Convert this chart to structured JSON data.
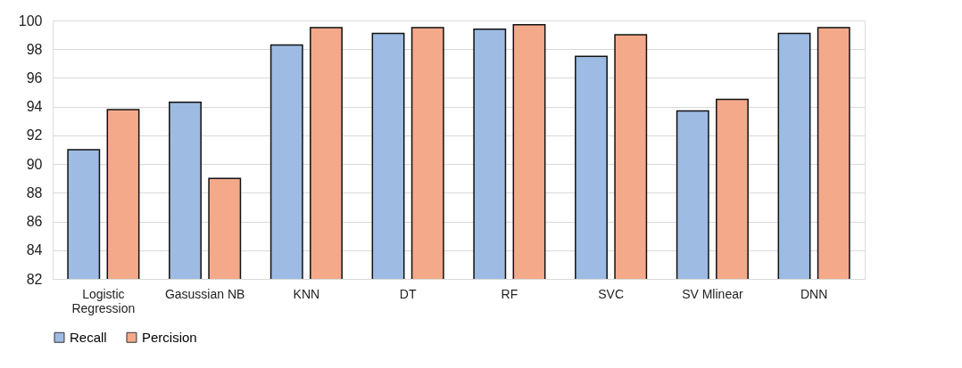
{
  "chart_data": {
    "type": "bar",
    "categories": [
      "Logistic Regression",
      "Gasussian NB",
      "KNN",
      "DT",
      "RF",
      "SVC",
      "SV Mlinear",
      "DNN"
    ],
    "series": [
      {
        "name": "Recall",
        "color": "#9dbbe3",
        "values": [
          91.0,
          94.3,
          98.3,
          99.1,
          99.4,
          97.5,
          93.7,
          99.1
        ]
      },
      {
        "name": "Percision",
        "color": "#f4a98a",
        "values": [
          93.8,
          89.0,
          99.5,
          99.5,
          99.7,
          99.0,
          94.5,
          99.5
        ]
      }
    ],
    "ylim": [
      82,
      100
    ],
    "yticks": [
      82,
      84,
      86,
      88,
      90,
      92,
      94,
      96,
      98,
      100
    ],
    "grid": "y",
    "legend": "bottom"
  }
}
